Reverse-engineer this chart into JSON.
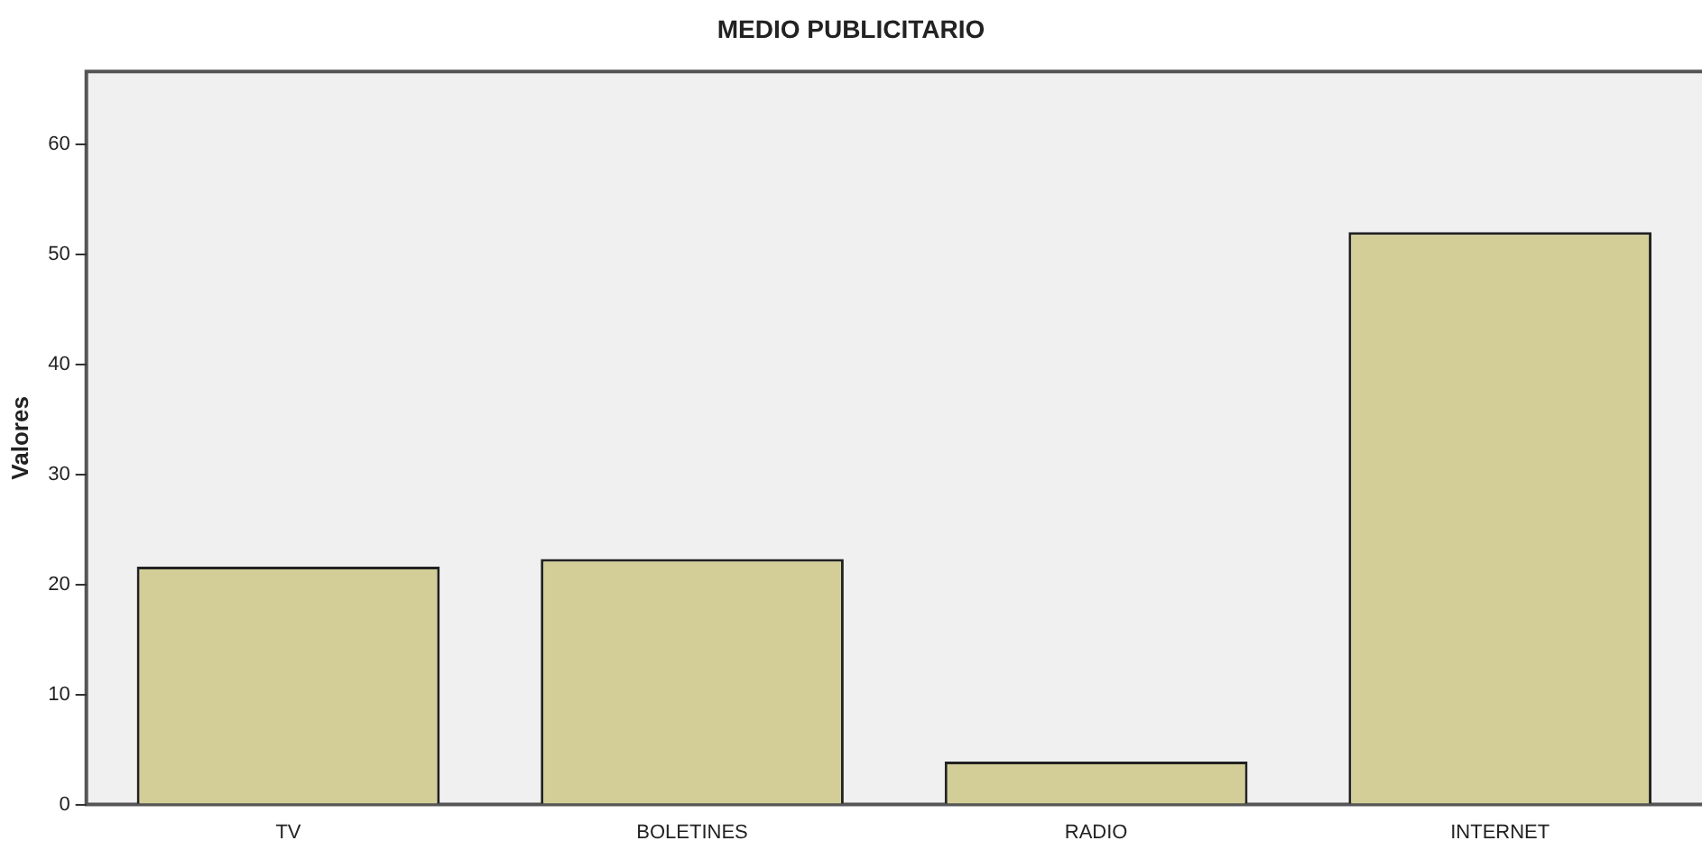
{
  "chart_data": {
    "type": "bar",
    "title": "MEDIO PUBLICITARIO",
    "ylabel": "Valores",
    "categories": [
      "TV",
      "BOLETINES",
      "RADIO",
      "INTERNET"
    ],
    "values": [
      21.6,
      22.3,
      3.9,
      52.0
    ],
    "color": "#d3ce98",
    "ylim": [
      0,
      66.6
    ],
    "yticks": [
      0,
      10,
      20,
      30,
      40,
      50,
      60
    ],
    "grid": false,
    "legend": false
  }
}
